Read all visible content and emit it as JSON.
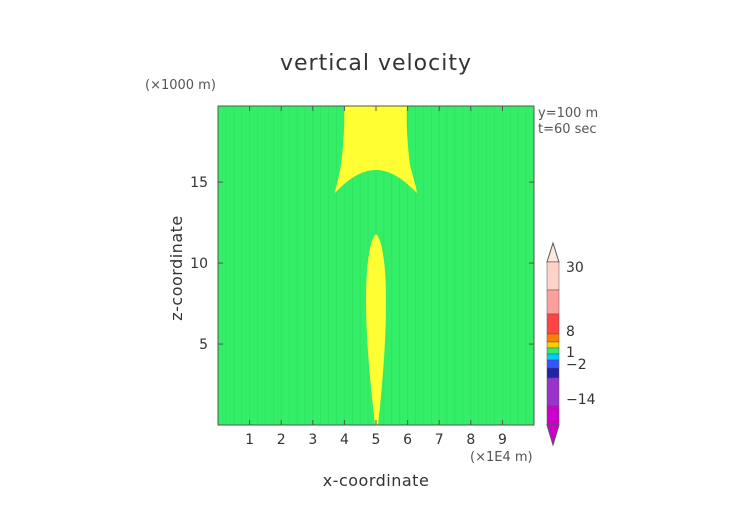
{
  "chart_data": {
    "type": "heatmap",
    "title": "vertical velocity",
    "xlabel": "x-coordinate",
    "ylabel": "z-coordinate",
    "x_unit": "(×1E4 m)",
    "y_unit": "(×1000 m)",
    "annotations": [
      "y=100 m",
      "t=60 sec"
    ],
    "x_ticks": [
      1,
      2,
      3,
      4,
      5,
      6,
      7,
      8,
      9
    ],
    "y_ticks": [
      5,
      10,
      15
    ],
    "xlim": [
      0,
      10
    ],
    "ylim": [
      0,
      19.7
    ],
    "background_color": "#33ee66",
    "positive_region_color": "#ffff33",
    "colorbar": {
      "labels": [
        "30",
        "8",
        "1",
        "−2",
        "−14"
      ],
      "levels": [
        30,
        8,
        1,
        -2,
        -14
      ],
      "colors": [
        "#ffd2c8",
        "#ff9e9e",
        "#ff4444",
        "#ff7f00",
        "#ffcc00",
        "#33ee66",
        "#00ccff",
        "#3355ff",
        "#2222aa",
        "#9933cc",
        "#cc00cc"
      ]
    }
  }
}
